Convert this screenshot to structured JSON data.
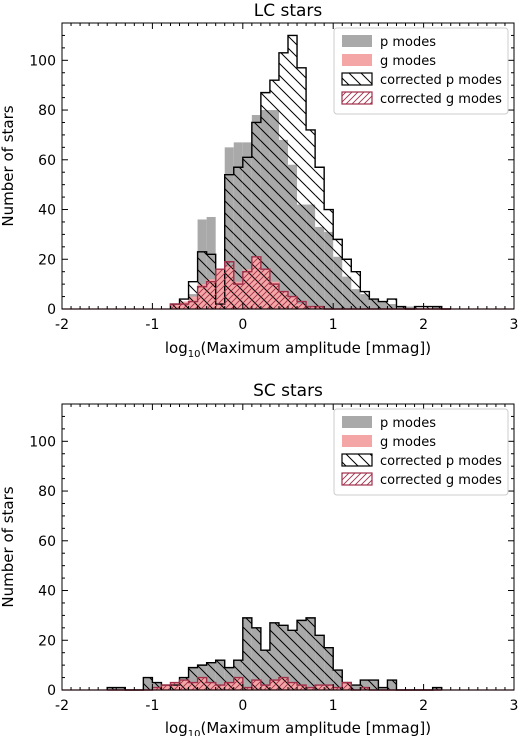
{
  "colors": {
    "p_modes": "#a9a9a9",
    "g_modes": "#f4a6a6",
    "corrected_p_edge": "#000000",
    "corrected_g_edge": "#a0304a"
  },
  "chart_data": [
    {
      "type": "histogram",
      "title": "LC stars",
      "xlabel_prefix": "log",
      "xlabel_sub": "10",
      "xlabel_rest": "(Maximum amplitude [mmag])",
      "ylabel": "Number of stars",
      "xlim": [
        -2,
        3
      ],
      "ylim": [
        0,
        115
      ],
      "xticks": [
        -2,
        -1,
        0,
        1,
        2,
        3
      ],
      "yticks": [
        0,
        20,
        40,
        60,
        80,
        100
      ],
      "bin_width": 0.1,
      "bin_start": -0.8,
      "legend_position": "top-right",
      "series": [
        {
          "name": "p modes",
          "style": "filled-gray",
          "values": [
            1,
            3,
            6,
            36,
            37,
            5,
            65,
            67,
            67,
            78,
            80,
            80,
            68,
            58,
            42,
            42,
            33,
            31,
            21,
            13,
            8,
            6,
            4,
            3,
            2,
            1,
            1,
            0,
            0,
            1,
            0
          ]
        },
        {
          "name": "g modes",
          "style": "filled-pink",
          "values": [
            2,
            3,
            5,
            10,
            12,
            16,
            17,
            11,
            16,
            21,
            16,
            11,
            7,
            5,
            2,
            1,
            1,
            0,
            0,
            0,
            0,
            0,
            0,
            0,
            0,
            0,
            0,
            0,
            0,
            0,
            0
          ]
        },
        {
          "name": "corrected p modes",
          "style": "hatch-black",
          "values": [
            2,
            4,
            11,
            23,
            22,
            2,
            54,
            57,
            61,
            75,
            87,
            92,
            103,
            110,
            97,
            72,
            57,
            40,
            28,
            20,
            15,
            7,
            4,
            3,
            4,
            1,
            0,
            1,
            1,
            1,
            0
          ]
        },
        {
          "name": "corrected g modes",
          "style": "hatch-crimson",
          "values": [
            2,
            2,
            3,
            9,
            11,
            16,
            19,
            10,
            15,
            21,
            16,
            10,
            7,
            5,
            3,
            1,
            1,
            0,
            0,
            0,
            0,
            0,
            0,
            0,
            0,
            0,
            0,
            0,
            0,
            0,
            0
          ]
        }
      ]
    },
    {
      "type": "histogram",
      "title": "SC stars",
      "xlabel_prefix": "log",
      "xlabel_sub": "10",
      "xlabel_rest": "(Maximum amplitude [mmag])",
      "ylabel": "Number of stars",
      "xlim": [
        -2,
        3
      ],
      "ylim": [
        0,
        115
      ],
      "xticks": [
        -2,
        -1,
        0,
        1,
        2,
        3
      ],
      "yticks": [
        0,
        20,
        40,
        60,
        80,
        100
      ],
      "bin_width": 0.1,
      "bin_start": -1.5,
      "legend_position": "top-right",
      "series": [
        {
          "name": "p modes",
          "style": "filled-gray",
          "values": [
            1,
            1,
            0,
            0,
            5,
            3,
            2,
            2,
            5,
            9,
            10,
            11,
            12,
            9,
            12,
            29,
            25,
            16,
            27,
            26,
            24,
            28,
            29,
            22,
            17,
            8,
            3,
            2,
            4,
            4,
            1,
            4,
            0,
            0,
            0,
            0,
            1
          ]
        },
        {
          "name": "g modes",
          "style": "filled-pink",
          "values": [
            0,
            0,
            0,
            0,
            0,
            1,
            2,
            3,
            4,
            3,
            5,
            3,
            2,
            3,
            5,
            1,
            4,
            2,
            4,
            5,
            3,
            2,
            1,
            2,
            2,
            1,
            3,
            0,
            1,
            0,
            0,
            0,
            0,
            0,
            0,
            0,
            0
          ]
        },
        {
          "name": "corrected p modes",
          "style": "hatch-black",
          "values": [
            1,
            1,
            0,
            0,
            5,
            3,
            2,
            2,
            5,
            9,
            10,
            11,
            12,
            9,
            12,
            29,
            25,
            16,
            27,
            26,
            24,
            28,
            29,
            22,
            17,
            8,
            3,
            2,
            4,
            4,
            1,
            4,
            0,
            0,
            0,
            0,
            1
          ]
        },
        {
          "name": "corrected g modes",
          "style": "hatch-crimson",
          "values": [
            0,
            0,
            0,
            0,
            0,
            1,
            2,
            3,
            4,
            3,
            5,
            3,
            2,
            3,
            5,
            1,
            4,
            2,
            4,
            5,
            3,
            2,
            1,
            2,
            2,
            1,
            3,
            0,
            1,
            0,
            0,
            0,
            0,
            0,
            0,
            0,
            0
          ]
        }
      ]
    }
  ]
}
